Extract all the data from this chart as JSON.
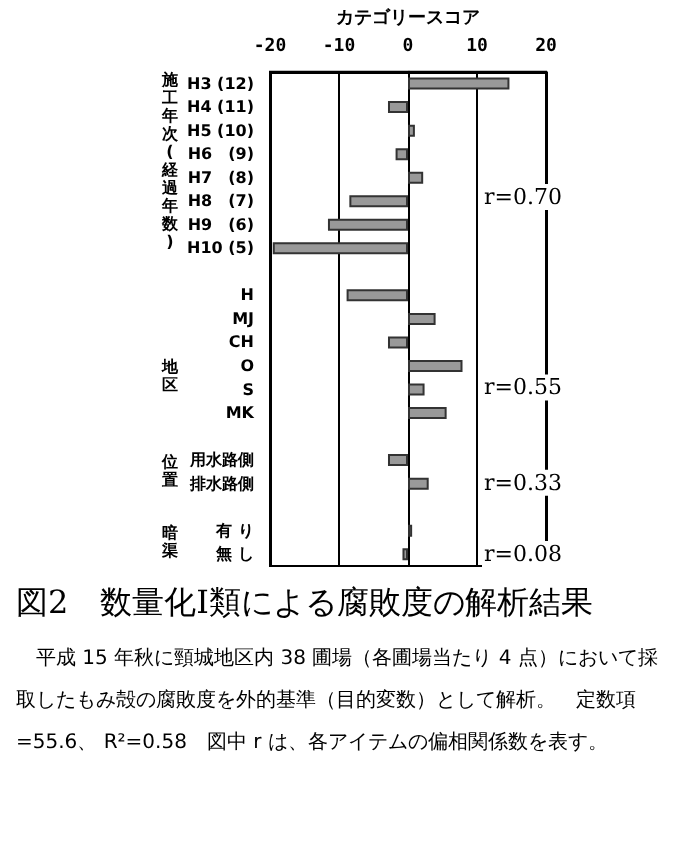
{
  "chart_data": {
    "type": "bar",
    "orientation": "horizontal",
    "title": "図2　数量化Ⅰ類による腐敗度の解析結果",
    "xlabel": "カテゴリースコア",
    "categories": [
      "H3 (12)",
      "H4 (11)",
      "H5 (10)",
      "H6　(9)",
      "H7　(8)",
      "H8　(7)",
      "H9　(6)",
      "H10 (5)",
      null,
      "H",
      "MJ",
      "CH",
      "O",
      "S",
      "MK",
      null,
      "用水路側",
      "排水路側",
      null,
      "有 り",
      "無 し"
    ],
    "values": [
      14.7,
      -2.9,
      1.0,
      -1.8,
      2.2,
      -8.5,
      -11.6,
      -19.6,
      null,
      -8.9,
      4.0,
      -2.9,
      7.9,
      2.4,
      5.6,
      null,
      -2.9,
      3.0,
      null,
      0.6,
      -0.8
    ],
    "color": "#999999",
    "xlim": [
      -20,
      20
    ],
    "xticks": [
      -20,
      -10,
      0,
      10,
      20
    ],
    "grid": "x",
    "annotations": [
      "r=0.70",
      "r=0.55",
      "r=0.33",
      "r=0.08",
      "施工年次(経過年数)",
      "地区",
      "位置",
      "暗渠",
      "平成 15 年秋に頸城地区内 38 圃場（各圃場当たり 4 点）において採取したもみ殻の腐敗度を外的基準（目的変数）として解析。　定数項=55.6、 R²=0.58　図中 r は、各アイテムの偏相関係数を表す。"
    ]
  }
}
